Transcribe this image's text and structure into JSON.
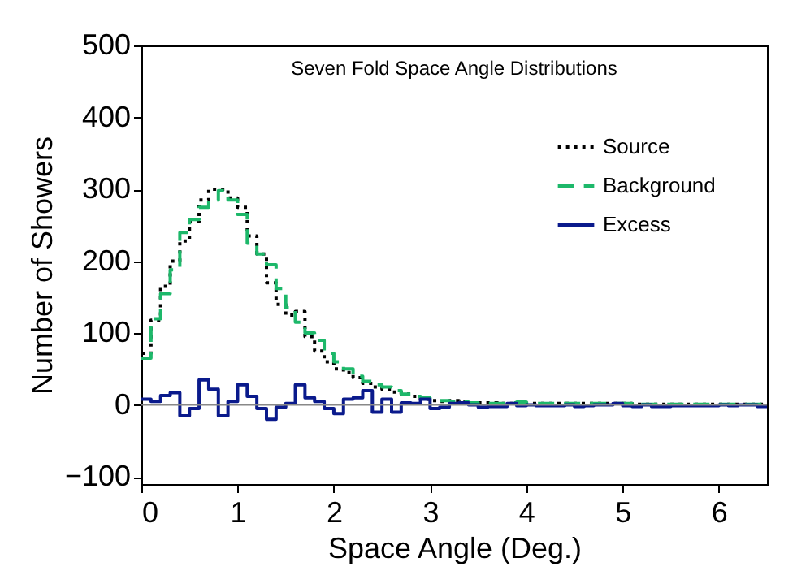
{
  "chart_data": {
    "type": "step",
    "title": "Seven Fold Space Angle Distributions",
    "xlabel": "Space Angle (Deg.)",
    "ylabel": "Number of Showers",
    "x": [
      0,
      0.1,
      0.2,
      0.3,
      0.4,
      0.5,
      0.6,
      0.7,
      0.8,
      0.9,
      1.0,
      1.1,
      1.2,
      1.3,
      1.4,
      1.5,
      1.6,
      1.7,
      1.8,
      1.9,
      2.0,
      2.1,
      2.2,
      2.3,
      2.4,
      2.5,
      2.6,
      2.7,
      2.8,
      2.9,
      3.0,
      3.1,
      3.2,
      3.3,
      3.4,
      3.5,
      3.6,
      3.7,
      3.8,
      3.9,
      4.0,
      4.1,
      4.2,
      4.3,
      4.4,
      4.5,
      4.6,
      4.7,
      4.8,
      4.9,
      5.0,
      5.1,
      5.2,
      5.3,
      5.4,
      5.5,
      5.6,
      5.7,
      5.8,
      5.9,
      6.0,
      6.1,
      6.2,
      6.3,
      6.4,
      6.5
    ],
    "series": [
      {
        "name": "Source",
        "color": "#000000",
        "line_style": "dotted",
        "values": [
          72,
          118,
          165,
          200,
          228,
          255,
          285,
          300,
          300,
          288,
          275,
          235,
          210,
          170,
          140,
          125,
          130,
          95,
          75,
          60,
          50,
          45,
          38,
          30,
          25,
          22,
          18,
          15,
          12,
          8,
          6,
          5,
          6,
          5,
          3,
          3,
          3,
          2,
          2,
          3,
          2,
          2,
          2,
          2,
          2,
          2,
          2,
          2,
          2,
          2,
          2,
          1,
          1,
          1,
          1,
          1,
          1,
          1,
          1,
          1,
          1,
          1,
          1,
          1,
          1,
          1
        ]
      },
      {
        "name": "Background",
        "color": "#1db86a",
        "line_style": "dashed",
        "values": [
          65,
          120,
          155,
          188,
          240,
          258,
          275,
          285,
          298,
          285,
          265,
          225,
          210,
          195,
          162,
          135,
          115,
          100,
          90,
          72,
          60,
          50,
          40,
          33,
          28,
          25,
          20,
          15,
          12,
          10,
          8,
          6,
          5,
          4,
          3,
          2,
          2,
          2,
          3,
          4,
          2,
          2,
          2,
          2,
          2,
          2,
          2,
          2,
          2,
          2,
          2,
          1,
          1,
          1,
          1,
          1,
          1,
          1,
          1,
          1,
          1,
          1,
          1,
          1,
          1,
          1
        ]
      },
      {
        "name": "Excess",
        "color": "#0a1a8c",
        "line_style": "solid",
        "values": [
          8,
          5,
          13,
          17,
          -15,
          -5,
          35,
          22,
          -15,
          5,
          28,
          12,
          -5,
          -20,
          -3,
          2,
          28,
          10,
          5,
          -5,
          -12,
          8,
          10,
          20,
          -10,
          8,
          -10,
          3,
          2,
          8,
          -5,
          -3,
          2,
          3,
          0,
          -3,
          -2,
          -2,
          2,
          -1,
          0,
          -1,
          -1,
          -1,
          0,
          -2,
          -1,
          0,
          0,
          2,
          -1,
          -2,
          0,
          -2,
          -2,
          -1,
          -1,
          -1,
          -1,
          -1,
          0,
          -1,
          0,
          0,
          -2,
          -2
        ]
      }
    ],
    "xlim": [
      0,
      6.5
    ],
    "xticks": [
      0,
      1,
      2,
      3,
      4,
      5,
      6
    ],
    "ylim": [
      -110,
      500
    ],
    "yticks": [
      -100,
      0,
      100,
      200,
      300,
      400,
      500
    ],
    "ref_lines": [
      {
        "axis": "y",
        "value": 0,
        "color": "#888888"
      }
    ],
    "legend": "top right",
    "grid": false
  }
}
